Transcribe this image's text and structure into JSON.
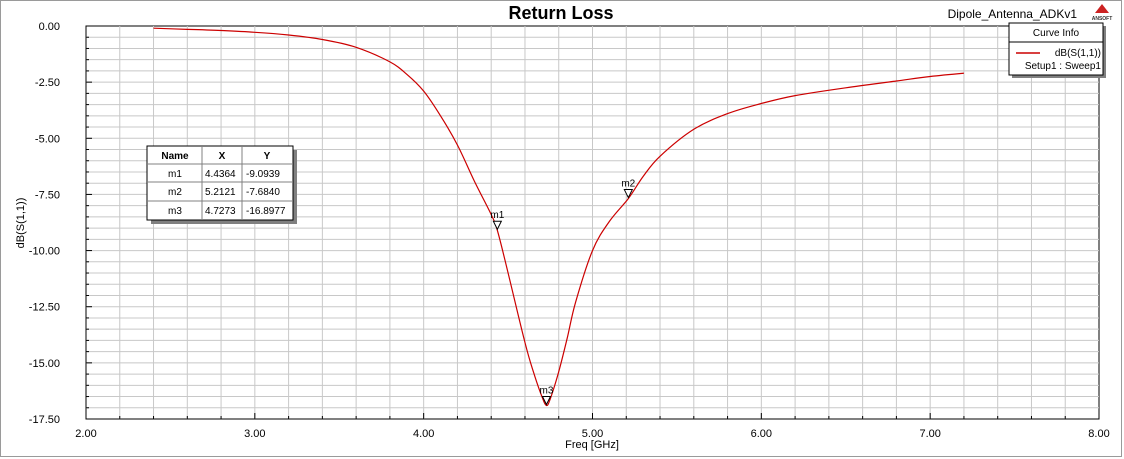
{
  "header": {
    "title": "Return Loss",
    "project": "Dipole_Antenna_ADKv1",
    "logo": "ANSOFT"
  },
  "legend": {
    "title": "Curve Info",
    "entry": "dB(S(1,1))",
    "setup": "Setup1 : Sweep1"
  },
  "marker_table": {
    "headers": [
      "Name",
      "X",
      "Y"
    ],
    "rows": [
      [
        "m1",
        "4.4364",
        "-9.0939"
      ],
      [
        "m2",
        "5.2121",
        "-7.6840"
      ],
      [
        "m3",
        "4.7273",
        "-16.8977"
      ]
    ]
  },
  "colors": {
    "curve": "#cc0000",
    "grid": "#c8c8c8",
    "axes": "#000000"
  },
  "chart_data": {
    "type": "line",
    "title": "Return Loss",
    "xlabel": "Freq [GHz]",
    "ylabel": "dB(S(1,1))",
    "xlim": [
      2.0,
      8.0
    ],
    "ylim": [
      -17.5,
      0.0
    ],
    "grid": true,
    "legend_position": "top-right",
    "x_ticks": [
      "2.00",
      "3.00",
      "4.00",
      "5.00",
      "6.00",
      "7.00",
      "8.00"
    ],
    "y_ticks": [
      "0.00",
      "-2.50",
      "-5.00",
      "-7.50",
      "-10.00",
      "-12.50",
      "-15.00",
      "-17.50"
    ],
    "series": [
      {
        "name": "dB(S(1,1))",
        "x": [
          2.4,
          2.6,
          2.8,
          3.0,
          3.2,
          3.4,
          3.6,
          3.8,
          3.9,
          4.0,
          4.1,
          4.2,
          4.3,
          4.4,
          4.4364,
          4.5,
          4.6,
          4.65,
          4.7,
          4.7273,
          4.75,
          4.8,
          4.85,
          4.9,
          5.0,
          5.1,
          5.2121,
          5.3,
          5.4,
          5.6,
          5.8,
          6.0,
          6.2,
          6.5,
          6.8,
          7.0,
          7.2
        ],
        "y": [
          -0.1,
          -0.15,
          -0.2,
          -0.28,
          -0.4,
          -0.6,
          -0.95,
          -1.6,
          -2.15,
          -2.9,
          -4.0,
          -5.3,
          -6.9,
          -8.4,
          -9.0939,
          -11.0,
          -14.1,
          -15.4,
          -16.5,
          -16.8977,
          -16.6,
          -15.4,
          -13.9,
          -12.3,
          -10.0,
          -8.7,
          -7.684,
          -6.7,
          -5.8,
          -4.6,
          -3.9,
          -3.45,
          -3.1,
          -2.75,
          -2.45,
          -2.25,
          -2.1
        ]
      }
    ],
    "markers": [
      {
        "name": "m1",
        "x": 4.4364,
        "y": -9.0939
      },
      {
        "name": "m2",
        "x": 5.2121,
        "y": -7.684
      },
      {
        "name": "m3",
        "x": 4.7273,
        "y": -16.8977
      }
    ]
  }
}
